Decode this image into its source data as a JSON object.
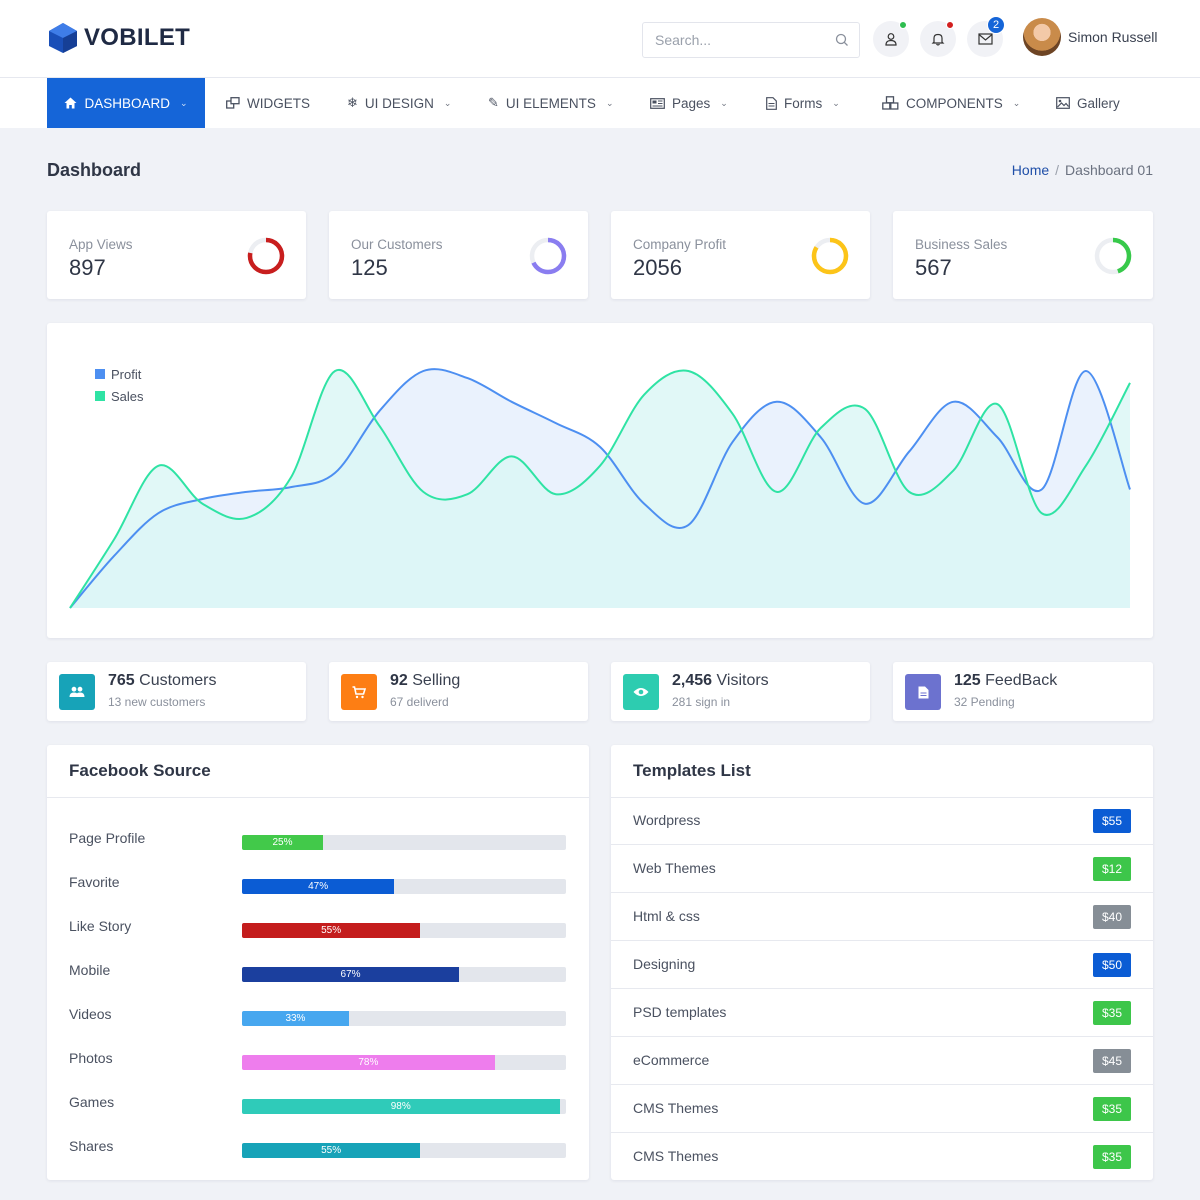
{
  "header": {
    "brand": "VOBILET",
    "search_placeholder": "Search...",
    "messages_count": "2",
    "user_name": "Simon Russell",
    "icons": [
      "user-icon",
      "bell-icon",
      "mail-icon",
      "search-icon"
    ],
    "status_colors": {
      "user_dot": "#2ebd4f",
      "bell_dot": "#d21f1f",
      "badge": "#1565d8"
    }
  },
  "nav": {
    "items": [
      {
        "label": "DASHBOARD",
        "icon": "home-icon",
        "dropdown": true,
        "active": true
      },
      {
        "label": "WIDGETS",
        "icon": "widgets-icon",
        "dropdown": false
      },
      {
        "label": "UI DESIGN",
        "icon": "snowflake-icon",
        "dropdown": true
      },
      {
        "label": "UI ELEMENTS",
        "icon": "edit-icon",
        "dropdown": true
      },
      {
        "label": "Pages",
        "icon": "newspaper-icon",
        "dropdown": true
      },
      {
        "label": "Forms",
        "icon": "file-icon",
        "dropdown": true
      },
      {
        "label": "COMPONENTS",
        "icon": "cubes-icon",
        "dropdown": true
      },
      {
        "label": "Gallery",
        "icon": "image-icon",
        "dropdown": false
      }
    ],
    "accent": "#1565d8"
  },
  "page": {
    "title": "Dashboard",
    "breadcrumb": {
      "home": "Home",
      "sep": "/",
      "current": "Dashboard 01"
    }
  },
  "stats": [
    {
      "label": "App Views",
      "value": "897",
      "ring_color": "#c81e1e",
      "ring_fraction": 0.78
    },
    {
      "label": "Our Customers",
      "value": "125",
      "ring_color": "#8a7df0",
      "ring_fraction": 0.68
    },
    {
      "label": "Company Profit",
      "value": "2056",
      "ring_color": "#fcc419",
      "ring_fraction": 0.84
    },
    {
      "label": "Business Sales",
      "value": "567",
      "ring_color": "#37c94a",
      "ring_fraction": 0.45
    }
  ],
  "chart_data": {
    "type": "area",
    "title": "",
    "xlabel": "",
    "ylabel": "",
    "grid": false,
    "legend_position": "top-left",
    "x": [
      0,
      1,
      2,
      3,
      4,
      5,
      6,
      7,
      8,
      9,
      10,
      11,
      12,
      13,
      14,
      15,
      16,
      17,
      18,
      19,
      20,
      21,
      22,
      23,
      24
    ],
    "ylim": [
      0,
      100
    ],
    "series": [
      {
        "name": "Profit",
        "color": "#4d8ff1",
        "fill": "#eaf2fd",
        "values": [
          0,
          22,
          40,
          46,
          49,
          51,
          57,
          83,
          100,
          97,
          87,
          78,
          68,
          44,
          35,
          70,
          87,
          72,
          44,
          66,
          87,
          72,
          50,
          100,
          50
        ]
      },
      {
        "name": "Sales",
        "color": "#2fe3a4",
        "fill": "#d9f6f5",
        "values": [
          0,
          29,
          60,
          44,
          38,
          55,
          100,
          77,
          49,
          48,
          64,
          48,
          60,
          90,
          100,
          82,
          49,
          76,
          84,
          49,
          58,
          86,
          40,
          60,
          95
        ]
      }
    ]
  },
  "info_cards": [
    {
      "num": "765",
      "label": "Customers",
      "sub": "13 new customers",
      "icon": "users-icon",
      "color": "#17a3b8"
    },
    {
      "num": "92",
      "label": "Selling",
      "sub": "67 deliverd",
      "icon": "cart-icon",
      "color": "#fd7e14"
    },
    {
      "num": "2,456",
      "label": "Visitors",
      "sub": "281 sign in",
      "icon": "eye-icon",
      "color": "#2dccb0"
    },
    {
      "num": "125",
      "label": "FeedBack",
      "sub": "32 Pending",
      "icon": "document-icon",
      "color": "#6c72cf"
    }
  ],
  "facebook": {
    "title": "Facebook Source",
    "rows": [
      {
        "label": "Page Profile",
        "percent": 25,
        "text": "25%",
        "color": "#42c94a"
      },
      {
        "label": "Favorite",
        "percent": 47,
        "text": "47%",
        "color": "#0b5cd4"
      },
      {
        "label": "Like Story",
        "percent": 55,
        "text": "55%",
        "color": "#c41d1d"
      },
      {
        "label": "Mobile",
        "percent": 67,
        "text": "67%",
        "color": "#1b3f9e"
      },
      {
        "label": "Videos",
        "percent": 33,
        "text": "33%",
        "color": "#47a7ef"
      },
      {
        "label": "Photos",
        "percent": 78,
        "text": "78%",
        "color": "#ee7ded"
      },
      {
        "label": "Games",
        "percent": 98,
        "text": "98%",
        "color": "#2fcbb9"
      },
      {
        "label": "Shares",
        "percent": 55,
        "text": "55%",
        "color": "#17a3b8"
      }
    ]
  },
  "templates": {
    "title": "Templates List",
    "rows": [
      {
        "name": "Wordpress",
        "price": "$55",
        "color": "#0b5cd4"
      },
      {
        "name": "Web Themes",
        "price": "$12",
        "color": "#3dc64a"
      },
      {
        "name": "Html & css",
        "price": "$40",
        "color": "#868e96"
      },
      {
        "name": "Designing",
        "price": "$50",
        "color": "#0b5cd4"
      },
      {
        "name": "PSD templates",
        "price": "$35",
        "color": "#3dc64a"
      },
      {
        "name": "eCommerce",
        "price": "$45",
        "color": "#868e96"
      },
      {
        "name": "CMS Themes",
        "price": "$35",
        "color": "#3dc64a"
      },
      {
        "name": "CMS Themes",
        "price": "$35",
        "color": "#3dc64a"
      }
    ]
  }
}
